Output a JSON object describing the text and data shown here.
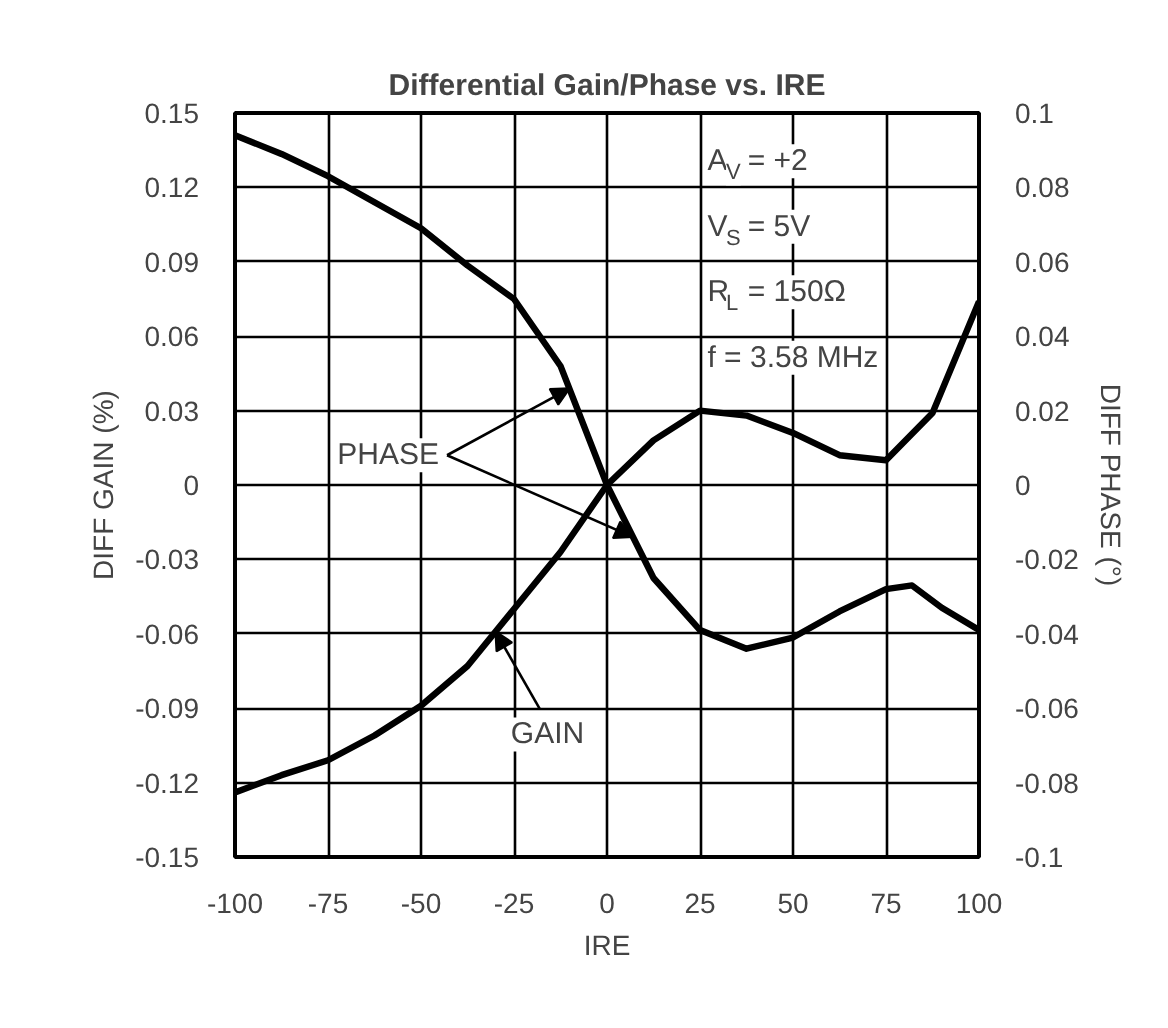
{
  "chart_data": {
    "type": "line",
    "title": "Differential Gain/Phase vs. IRE",
    "xlabel": "IRE",
    "ylabel": "DIFF GAIN (%)",
    "y2label": "DIFF PHASE (°)",
    "xlim": [
      -100,
      100
    ],
    "xticks": [
      -100,
      -75,
      -50,
      -25,
      0,
      25,
      50,
      75,
      100
    ],
    "ylim": [
      -0.15,
      0.15
    ],
    "yticks": [
      -0.15,
      -0.12,
      -0.09,
      -0.06,
      -0.03,
      0,
      0.03,
      0.06,
      0.09,
      0.12,
      0.15
    ],
    "y2lim": [
      -0.1,
      0.1
    ],
    "y2ticks": [
      -0.1,
      -0.08,
      -0.06,
      -0.04,
      -0.02,
      0,
      0.02,
      0.04,
      0.06,
      0.08,
      0.1
    ],
    "grid": true,
    "line_style": "solid",
    "marker": "none",
    "series": [
      {
        "color": "#000000",
        "x": [
          -100,
          -87.5,
          -75,
          -62.5,
          -50,
          -37.5,
          -25,
          -12.5,
          0,
          12.5,
          25,
          37.5,
          50,
          62.5,
          75,
          87.5,
          100
        ],
        "values": [
          -0.124,
          -0.117,
          -0.111,
          -0.101,
          -0.089,
          -0.073,
          -0.05,
          -0.027,
          0,
          0.018,
          0.03,
          0.028,
          0.021,
          0.012,
          0.01,
          0.029,
          0.074
        ]
      },
      {
        "color": "#000000",
        "axis": "y2",
        "x": [
          -100,
          -87.5,
          -75,
          -62.5,
          -50,
          -37.5,
          -25,
          -12.5,
          0,
          12.5,
          25,
          37.5,
          50,
          62.5,
          75,
          82,
          90,
          100
        ],
        "values": [
          0.094,
          0.089,
          0.083,
          0.076,
          0.069,
          0.059,
          0.05,
          0.032,
          0,
          -0.025,
          -0.039,
          -0.044,
          -0.041,
          -0.034,
          -0.028,
          -0.027,
          -0.033,
          -0.039
        ]
      }
    ],
    "annotations": [
      "A$_{V}$ = +2",
      "V$_{S}$ = 5V",
      "R$_{L}$ = 150Ω",
      "f = 3.58 MHz",
      {
        "text": "PHASE",
        "x": -10,
        "y": 0.039
      },
      {
        "text": "GAIN",
        "x": -30,
        "y": -0.059
      }
    ]
  }
}
